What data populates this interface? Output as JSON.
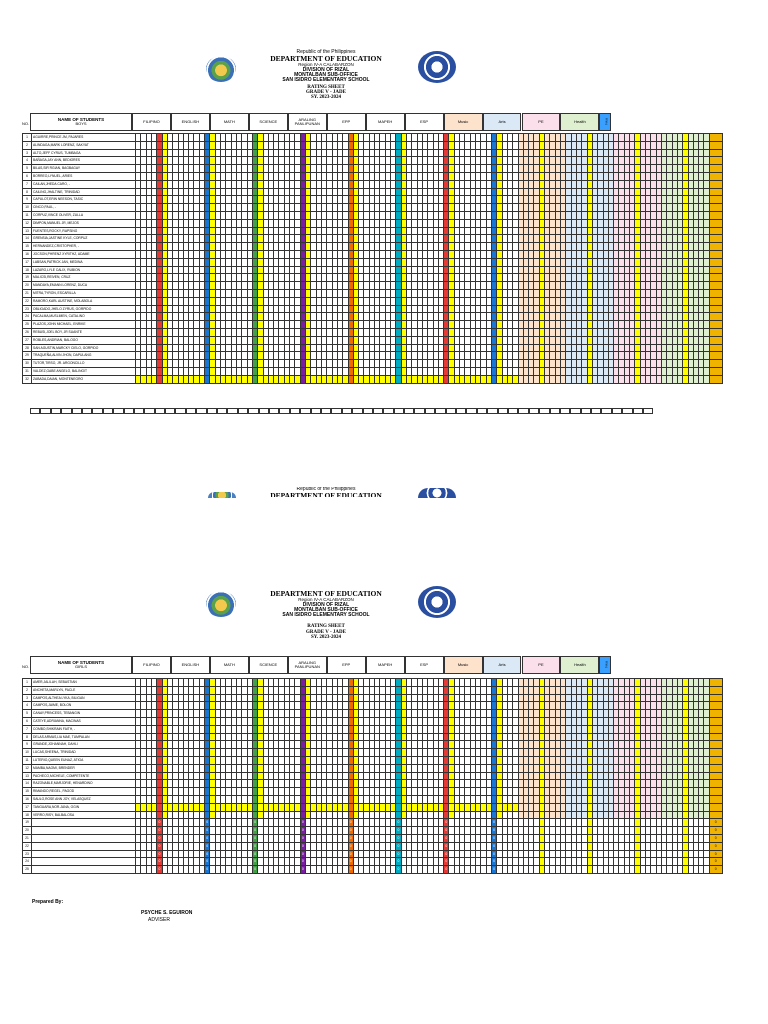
{
  "header": {
    "republic": "Republic of the Philippines",
    "department": "DEPARTMENT OF EDUCATION",
    "region": "Region IV-A CALABARZON",
    "division": "DIVISION OF RIZAL",
    "suboffice": "MONTALBAN SUB-OFFICE",
    "school": "SAN ISIDRO ELEMENTARY SCHOOL",
    "sheet": "RATING SHEET",
    "grade": "GRADE V - JADE",
    "sy": "SY. 2023-2024"
  },
  "table_labels": {
    "no": "NO.",
    "name_of_students": "NAME OF STUDENTS",
    "boys": "BOYS",
    "girls": "GIRLS",
    "subjects": [
      "FILIPINO",
      "ENGLISH",
      "MATH",
      "SCIENCE",
      "ARALING PANLIPUNAN",
      "EPP",
      "MAPEH",
      "ESP",
      "Music",
      "Arts",
      "PE",
      "Health"
    ],
    "subject_colors": [
      "#ffffff",
      "#ffffff",
      "#ffffff",
      "#ffffff",
      "#ffffff",
      "#ffffff",
      "#ffffff",
      "#ffffff",
      "#fde2cc",
      "#dbe9f6",
      "#fbe0ec",
      "#dff0d0"
    ],
    "final_header": "FINAL"
  },
  "boys": [
    "AGUIRRE,PRINCE JM, PAJARES",
    "ALINDAGA,MARK LORENZ, SAKYAT",
    "ALTO,JEFF CYRUS, TUMBAGA",
    "BAÑAGA,JAY ANN, BEDIORES",
    "BILAS,SIR RGIAN, BAGBAGAY",
    "BORREO,LYNUEL, ARIES",
    "CAILAN,JHEDA CARO, -",
    "CAILING,JHALTINE, TRINIDAD",
    "CAPULOT,ERIN NEESON, TASIC",
    "CINCO,PAUL, -",
    "CORPUZ,VINCE OLIVER, ZULLA",
    "DIMPON,MANUEL JR, MEJOS",
    "FUENTES,ROCKY, RAPSING",
    "GRENSIA,JASTINE KYLE, CORPUZ",
    "HERNANDEZ,CRISTOPHER, -",
    "JOCSON,PHRENZ XYRITHZ, ADAME",
    "LABSAN,PATRICK JAN, MEDINA",
    "LAZARO,LYLE CALIX, RUBION",
    "MALICSI,REIVEN, CRUZ",
    "MANDAYA,EMANN LORENZ, DUCA",
    "MITRA,TYRON, ESCARILLA",
    "RAMORO,KARL AUSTINE, MOLABOLA",
    "OBLIGADO,JHELO ZYRUS, GORPIDO",
    "PACALMA,MUSLIMEN, CATALINO",
    "PLAZOS,JOHN MICHAEL, ENRIKE",
    "REBUSI,JOEL BOY, JR SUANTE",
    "ROBLES,ANDRIAN, BALOGO",
    "SAN AGUSTIN,MARCKY CIELO, GORPIDO",
    "TRAQUEÑA,ALVIN JHON, DAPULANG",
    "TUTOR,TIRSO, JR. ARGONCILLO",
    "VALDEZ,GABE ANGELO, BALINGIT",
    "ZABADA,DAIAN, MONTENEGRO"
  ],
  "girls": [
    "AMER,JALILAH, SEBASTIAN",
    "ANCHETA,MARLYN, PACLE",
    "CAMPOS,ALTHEA LYKA, BILIGAN",
    "CAMPOS,JAIME, BOLON",
    "CANAY,PRINCESS, TEBANGIN",
    "CATEYE,ADRIANNA, MACINAS",
    "COMBO,SHIKRAIN FAITH, -",
    "DELAS ARMAS,LIA MAE, TUMPALAN",
    "GRANDE,JOHANNAH, DAHLI",
    "LUCAS,SHEENA, TRINIDAD",
    "LUTERIO,QUEEN EUNAZ, ATIGA",
    "MAMBA,NAOMI, BRENDER",
    "PACHECO,MICHELE, COMPETENTE",
    "RAZONABLE,MARJORIE, HENARDINO",
    "RIMANDO,REGEL, PAGOD",
    "SAULO,ROSE ANN JOY, VELASQUEZ",
    "TANGUARA,NOR-JANA, OGIN",
    "VERRO,RISY, BALBALOSA"
  ],
  "girls_empty_rows": [
    "19",
    "20",
    "21",
    "22",
    "23",
    "24",
    "25"
  ],
  "girls_zero": "0",
  "prepared_by": "Prepared By:",
  "adviser_name": "PSYCHE S. EGUIRON",
  "adviser_title": "ADVISER",
  "colors": {
    "highlight": "#ffff00",
    "final": "#f0b400",
    "grade_red": "#e53935",
    "grade_blue": "#1976d2",
    "grade_green": "#43a047",
    "grade_purple": "#7b1fa2",
    "grade_orange": "#ef6c00",
    "grade_cyan": "#00acc1"
  }
}
